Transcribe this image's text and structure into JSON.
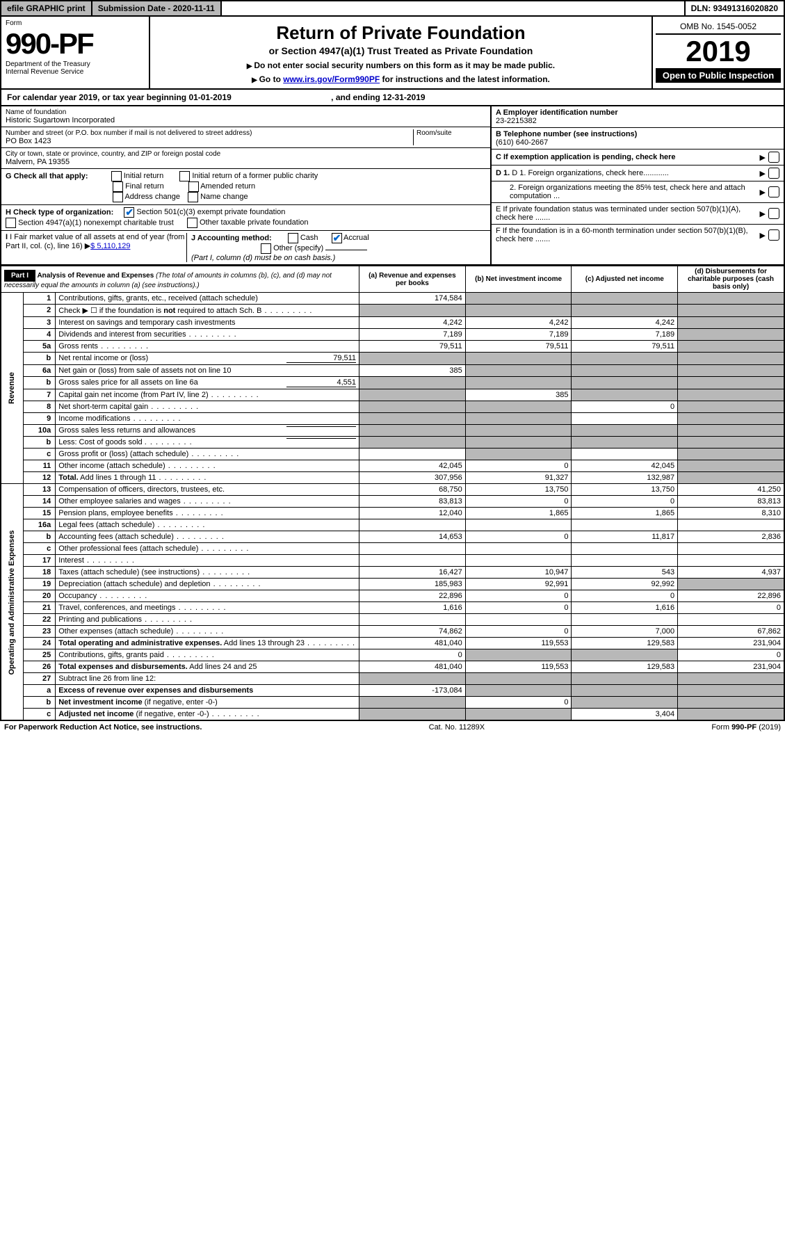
{
  "topbar": {
    "efile": "efile GRAPHIC print",
    "subdate_label": "Submission Date - ",
    "subdate": "2020-11-11",
    "dln_label": "DLN: ",
    "dln": "93491316020820"
  },
  "header": {
    "form_label": "Form",
    "form_no": "990-PF",
    "dept": "Department of the Treasury",
    "irs": "Internal Revenue Service",
    "title": "Return of Private Foundation",
    "subtitle": "or Section 4947(a)(1) Trust Treated as Private Foundation",
    "note1": "Do not enter social security numbers on this form as it may be made public.",
    "note2_pre": "Go to ",
    "note2_link": "www.irs.gov/Form990PF",
    "note2_post": " for instructions and the latest information.",
    "omb": "OMB No. 1545-0052",
    "year": "2019",
    "open": "Open to Public Inspection"
  },
  "calendar": {
    "text": "For calendar year 2019, or tax year beginning 01-01-2019",
    "ending_label": ", and ending ",
    "ending": "12-31-2019"
  },
  "info": {
    "name_label": "Name of foundation",
    "name": "Historic Sugartown Incorporated",
    "addr_label": "Number and street (or P.O. box number if mail is not delivered to street address)",
    "room_label": "Room/suite",
    "addr": "PO Box 1423",
    "city_label": "City or town, state or province, country, and ZIP or foreign postal code",
    "city": "Malvern, PA  19355",
    "A_label": "A Employer identification number",
    "A": "23-2215382",
    "B_label": "B Telephone number (see instructions)",
    "B": "(610) 640-2667",
    "C": "C If exemption application is pending, check here",
    "D1": "D 1. Foreign organizations, check here............",
    "D2": "2. Foreign organizations meeting the 85% test, check here and attach computation ...",
    "E": "E  If private foundation status was terminated under section 507(b)(1)(A), check here .......",
    "F": "F  If the foundation is in a 60-month termination under section 507(b)(1)(B), check here .......",
    "G_label": "G Check all that apply:",
    "G_opts": [
      "Initial return",
      "Initial return of a former public charity",
      "Final return",
      "Amended return",
      "Address change",
      "Name change"
    ],
    "H_label": "H Check type of organization:",
    "H1": "Section 501(c)(3) exempt private foundation",
    "H2": "Section 4947(a)(1) nonexempt charitable trust",
    "H3": "Other taxable private foundation",
    "I_label": "I Fair market value of all assets at end of year (from Part II, col. (c), line 16)",
    "I_val": "$  5,110,129",
    "J_label": "J Accounting method:",
    "J_cash": "Cash",
    "J_accrual": "Accrual",
    "J_other": "Other (specify)",
    "J_note": "(Part I, column (d) must be on cash basis.)"
  },
  "partI": {
    "label": "Part I",
    "title": "Analysis of Revenue and Expenses",
    "subtitle": "(The total of amounts in columns (b), (c), and (d) may not necessarily equal the amounts in column (a) (see instructions).)",
    "cols": {
      "a": "(a)   Revenue and expenses per books",
      "b": "(b)  Net investment income",
      "c": "(c)  Adjusted net income",
      "d": "(d)  Disbursements for charitable purposes (cash basis only)"
    },
    "revenue_label": "Revenue",
    "expenses_label": "Operating and Administrative Expenses",
    "rows": [
      {
        "n": "1",
        "d": "Contributions, gifts, grants, etc., received (attach schedule)",
        "a": "174,584",
        "bgray": true,
        "cgray": true,
        "dgray": true
      },
      {
        "n": "2",
        "d": "Check ▶ ☐ if the foundation is <b>not</b> required to attach Sch. B",
        "dots": true,
        "agray": true,
        "bgray": true,
        "cgray": true,
        "dgray": true
      },
      {
        "n": "3",
        "d": "Interest on savings and temporary cash investments",
        "a": "4,242",
        "b": "4,242",
        "c": "4,242",
        "dgray": true
      },
      {
        "n": "4",
        "d": "Dividends and interest from securities",
        "dots": true,
        "a": "7,189",
        "b": "7,189",
        "c": "7,189",
        "dgray": true
      },
      {
        "n": "5a",
        "d": "Gross rents",
        "dots": true,
        "a": "79,511",
        "b": "79,511",
        "c": "79,511",
        "dgray": true
      },
      {
        "n": "b",
        "d": "Net rental income or (loss)",
        "inline": "79,511",
        "agray": true,
        "bgray": true,
        "cgray": true,
        "dgray": true
      },
      {
        "n": "6a",
        "d": "Net gain or (loss) from sale of assets not on line 10",
        "a": "385",
        "bgray": true,
        "cgray": true,
        "dgray": true
      },
      {
        "n": "b",
        "d": "Gross sales price for all assets on line 6a",
        "inline": "4,551",
        "agray": true,
        "bgray": true,
        "cgray": true,
        "dgray": true
      },
      {
        "n": "7",
        "d": "Capital gain net income (from Part IV, line 2)",
        "dots": true,
        "agray": true,
        "b": "385",
        "cgray": true,
        "dgray": true
      },
      {
        "n": "8",
        "d": "Net short-term capital gain",
        "dots": true,
        "agray": true,
        "bgray": true,
        "c": "0",
        "dgray": true
      },
      {
        "n": "9",
        "d": "Income modifications",
        "dots": true,
        "agray": true,
        "bgray": true,
        "cgray": false,
        "dgray": true
      },
      {
        "n": "10a",
        "d": "Gross sales less returns and allowances",
        "inline": "",
        "agray": true,
        "bgray": true,
        "cgray": true,
        "dgray": true
      },
      {
        "n": "b",
        "d": "Less: Cost of goods sold",
        "dots": true,
        "inline": "",
        "agray": true,
        "bgray": true,
        "cgray": true,
        "dgray": true
      },
      {
        "n": "c",
        "d": "Gross profit or (loss) (attach schedule)",
        "dots": true,
        "agray": false,
        "bgray": true,
        "dgray": true
      },
      {
        "n": "11",
        "d": "Other income (attach schedule)",
        "dots": true,
        "a": "42,045",
        "b": "0",
        "c": "42,045",
        "dgray": true
      },
      {
        "n": "12",
        "d": "<b>Total.</b> Add lines 1 through 11",
        "dots": true,
        "a": "307,956",
        "b": "91,327",
        "c": "132,987",
        "dgray": true
      }
    ],
    "exp": [
      {
        "n": "13",
        "d": "Compensation of officers, directors, trustees, etc.",
        "a": "68,750",
        "b": "13,750",
        "c": "13,750",
        "dd": "41,250"
      },
      {
        "n": "14",
        "d": "Other employee salaries and wages",
        "dots": true,
        "a": "83,813",
        "b": "0",
        "c": "0",
        "dd": "83,813"
      },
      {
        "n": "15",
        "d": "Pension plans, employee benefits",
        "dots": true,
        "a": "12,040",
        "b": "1,865",
        "c": "1,865",
        "dd": "8,310"
      },
      {
        "n": "16a",
        "d": "Legal fees (attach schedule)",
        "dots": true
      },
      {
        "n": "b",
        "d": "Accounting fees (attach schedule)",
        "dots": true,
        "a": "14,653",
        "b": "0",
        "c": "11,817",
        "dd": "2,836"
      },
      {
        "n": "c",
        "d": "Other professional fees (attach schedule)",
        "dots": true
      },
      {
        "n": "17",
        "d": "Interest",
        "dots": true
      },
      {
        "n": "18",
        "d": "Taxes (attach schedule) (see instructions)",
        "dots": true,
        "a": "16,427",
        "b": "10,947",
        "c": "543",
        "dd": "4,937"
      },
      {
        "n": "19",
        "d": "Depreciation (attach schedule) and depletion",
        "dots": true,
        "a": "185,983",
        "b": "92,991",
        "c": "92,992",
        "dgray": true
      },
      {
        "n": "20",
        "d": "Occupancy",
        "dots": true,
        "a": "22,896",
        "b": "0",
        "c": "0",
        "dd": "22,896"
      },
      {
        "n": "21",
        "d": "Travel, conferences, and meetings",
        "dots": true,
        "a": "1,616",
        "b": "0",
        "c": "1,616",
        "dd": "0"
      },
      {
        "n": "22",
        "d": "Printing and publications",
        "dots": true
      },
      {
        "n": "23",
        "d": "Other expenses (attach schedule)",
        "dots": true,
        "a": "74,862",
        "b": "0",
        "c": "7,000",
        "dd": "67,862"
      },
      {
        "n": "24",
        "d": "<b>Total operating and administrative expenses.</b> Add lines 13 through 23",
        "dots": true,
        "a": "481,040",
        "b": "119,553",
        "c": "129,583",
        "dd": "231,904"
      },
      {
        "n": "25",
        "d": "Contributions, gifts, grants paid",
        "dots": true,
        "a": "0",
        "bgray": true,
        "cgray": true,
        "dd": "0"
      },
      {
        "n": "26",
        "d": "<b>Total expenses and disbursements.</b> Add lines 24 and 25",
        "a": "481,040",
        "b": "119,553",
        "c": "129,583",
        "dd": "231,904"
      },
      {
        "n": "27",
        "d": "Subtract line 26 from line 12:",
        "agray": true,
        "bgray": true,
        "cgray": true,
        "dgray": true
      },
      {
        "n": "a",
        "d": "<b>Excess of revenue over expenses and disbursements</b>",
        "a": "-173,084",
        "bgray": true,
        "cgray": true,
        "dgray": true
      },
      {
        "n": "b",
        "d": "<b>Net investment income</b> (if negative, enter -0-)",
        "agray": true,
        "b": "0",
        "cgray": true,
        "dgray": true
      },
      {
        "n": "c",
        "d": "<b>Adjusted net income</b> (if negative, enter -0-)",
        "dots": true,
        "agray": true,
        "bgray": true,
        "c": "3,404",
        "dgray": true
      }
    ]
  },
  "footer": {
    "left": "For Paperwork Reduction Act Notice, see instructions.",
    "center": "Cat. No. 11289X",
    "right": "Form 990-PF (2019)"
  }
}
